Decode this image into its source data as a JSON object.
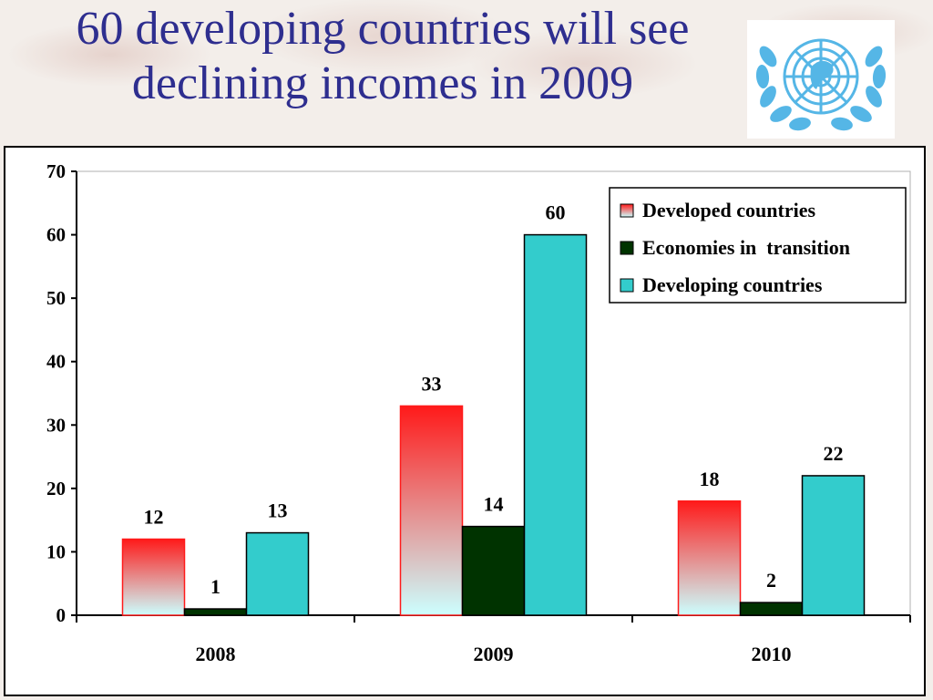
{
  "slide": {
    "title_line1": "60 developing countries will see",
    "title_line2": "declining incomes in 2009"
  },
  "logo": {
    "icon": "un-emblem-icon",
    "color": "#55b6e6"
  },
  "chart_data": {
    "type": "bar",
    "categories": [
      "2008",
      "2009",
      "2010"
    ],
    "series": [
      {
        "name": "Developed countries",
        "values": [
          12,
          33,
          18
        ],
        "color": "#ff1a1a",
        "fill": "gradient-red-to-lightcyan"
      },
      {
        "name": "Economies in  transition",
        "values": [
          1,
          14,
          2
        ],
        "color": "#003300"
      },
      {
        "name": "Developing countries",
        "values": [
          13,
          60,
          22
        ],
        "color": "#33cccc"
      }
    ],
    "ylim": [
      0,
      70
    ],
    "yticks": [
      "0",
      "10",
      "20",
      "30",
      "40",
      "50",
      "60",
      "70"
    ],
    "grid": false,
    "legend_position": "top-right",
    "data_labels": true
  }
}
